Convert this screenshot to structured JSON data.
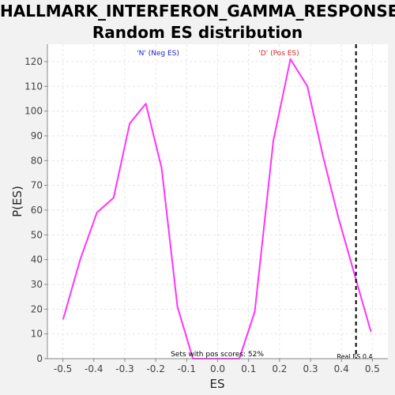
{
  "chart_data": {
    "type": "line",
    "title": [
      "HALLMARK_INTERFERON_GAMMA_RESPONSE:",
      "Random ES distribution"
    ],
    "xlabel": "ES",
    "ylabel": "P(ES)",
    "xlim": [
      -0.55,
      0.55
    ],
    "ylim": [
      0,
      127
    ],
    "x_ticks": [
      -0.5,
      -0.4,
      -0.3,
      -0.2,
      -0.1,
      0.0,
      0.1,
      0.2,
      0.3,
      0.4,
      0.5
    ],
    "x_tick_labels": [
      "-0.5",
      "-0.4",
      "-0.3",
      "-0.2",
      "-0.1",
      "0.0",
      "0.1",
      "0.2",
      "0.3",
      "0.4",
      "0.5"
    ],
    "y_ticks": [
      0,
      10,
      20,
      30,
      40,
      50,
      60,
      70,
      80,
      90,
      100,
      110,
      120
    ],
    "grid": true,
    "series": [
      {
        "color": "#ff33ff",
        "x": [
          -0.499,
          -0.444,
          -0.39,
          -0.336,
          -0.284,
          -0.232,
          -0.181,
          -0.13,
          -0.08,
          -0.03,
          0.02,
          0.07,
          0.12,
          0.18,
          0.235,
          0.29,
          0.34,
          0.39,
          0.44,
          0.495
        ],
        "y": [
          16,
          40,
          59,
          65,
          95,
          103,
          77,
          21,
          0,
          0,
          0,
          0,
          19,
          88,
          121,
          110,
          82,
          57,
          35,
          11
        ]
      }
    ],
    "real_es": 0.447,
    "annotations": {
      "neg_label": "'N' (Neg ES)",
      "pos_label": "'D' (Pos ES)",
      "pos_fraction": "Sets with pos scores: 52%",
      "real_es_label": "Real ES 0.4"
    },
    "colors": {
      "neg_label": "#2222cc",
      "pos_label": "#dd2222",
      "grid": "#e6e6e6",
      "line": "#ff33ff"
    }
  }
}
